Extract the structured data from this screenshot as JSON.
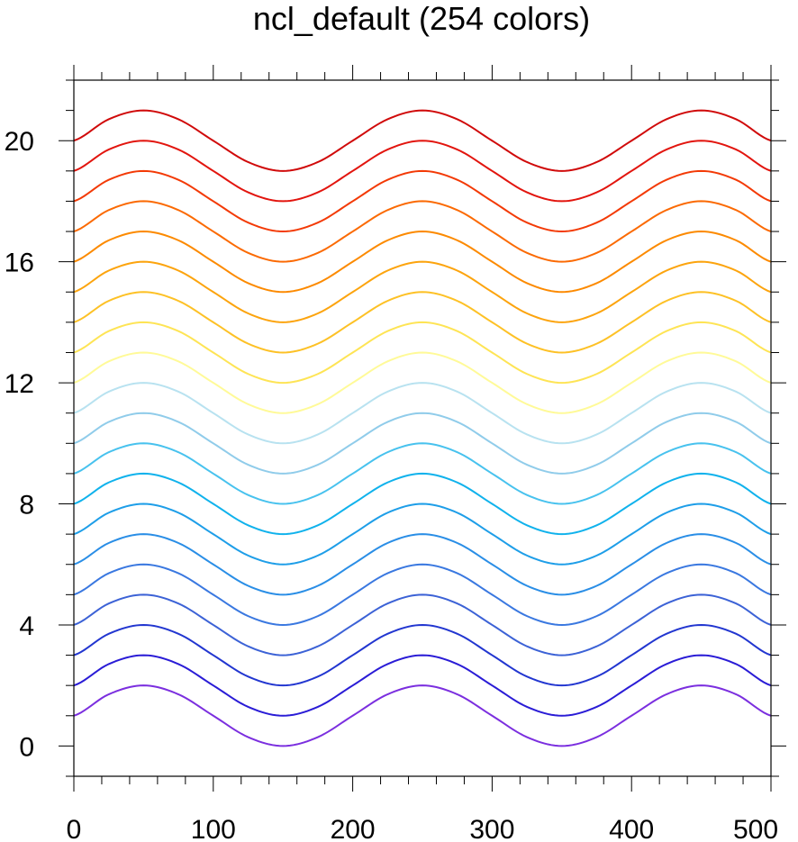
{
  "chart_data": {
    "type": "line",
    "title": "ncl_default (254 colors)",
    "xlabel": "",
    "ylabel": "",
    "xlim": [
      0,
      500
    ],
    "ylim": [
      -1,
      22
    ],
    "x_major_ticks": [
      0,
      100,
      200,
      300,
      400,
      500
    ],
    "x_tick_labels": [
      "0",
      "100",
      "200",
      "300",
      "400",
      "500"
    ],
    "x_minor_step": 20,
    "y_major_ticks": [
      0,
      4,
      8,
      12,
      16,
      20
    ],
    "y_tick_labels": [
      "0",
      "4",
      "8",
      "12",
      "16",
      "20"
    ],
    "y_minor_step": 1,
    "grid": false,
    "x": [
      0,
      25,
      50,
      75,
      100,
      125,
      150,
      175,
      200,
      225,
      250,
      275,
      300,
      325,
      350,
      375,
      400,
      425,
      450,
      475,
      500
    ],
    "base_shape": [
      1,
      1.707,
      2,
      1.707,
      1,
      0.293,
      0,
      0.293,
      1,
      1.707,
      2,
      1.707,
      1,
      0.293,
      0,
      0.293,
      1,
      1.707,
      2,
      1.707,
      1
    ],
    "offsets": [
      0,
      1,
      2,
      3,
      4,
      5,
      6,
      7,
      8,
      9,
      10,
      11,
      12,
      13,
      14,
      15,
      16,
      17,
      18,
      19
    ],
    "series_colors": [
      "#7b2fdf",
      "#2a1cd6",
      "#2236d0",
      "#3c62d6",
      "#3a78e0",
      "#2a8ee6",
      "#1e9ee8",
      "#10b2ec",
      "#48c2ee",
      "#90ccea",
      "#b8e2f0",
      "#fffa98",
      "#fee455",
      "#fdc126",
      "#fca40e",
      "#fc8a00",
      "#fb6a03",
      "#f33a06",
      "#e2150e",
      "#d00a0a",
      "#cc4040",
      "#f9b2b4"
    ]
  }
}
